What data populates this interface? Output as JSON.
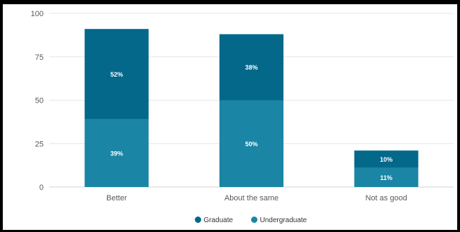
{
  "chart_data": {
    "type": "bar",
    "stacked": true,
    "categories": [
      "Better",
      "About the same",
      "Not as good"
    ],
    "series": [
      {
        "name": "Undergraduate",
        "values": [
          39,
          50,
          11
        ],
        "labels": [
          "39%",
          "50%",
          "11%"
        ],
        "color": "#1a85a5"
      },
      {
        "name": "Graduate",
        "values": [
          52,
          38,
          10
        ],
        "labels": [
          "52%",
          "38%",
          "10%"
        ],
        "color": "#03688a"
      }
    ],
    "ylim": [
      0,
      100
    ],
    "yticks": [
      0,
      25,
      50,
      75,
      100
    ],
    "grid": true,
    "legend_position": "bottom-center",
    "legend_order": [
      "Graduate",
      "Undergraduate"
    ]
  }
}
